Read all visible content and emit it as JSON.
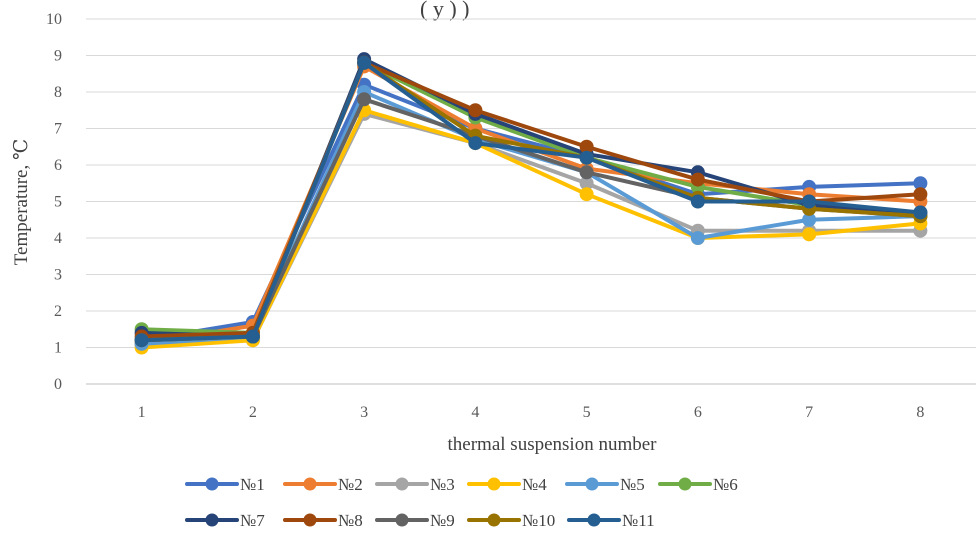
{
  "chart_data": {
    "type": "line",
    "title_partial": "(    y    )   )",
    "xlabel": "thermal suspension number",
    "ylabel": "Temperature, ℃",
    "categories": [
      "1",
      "2",
      "3",
      "4",
      "5",
      "6",
      "7",
      "8"
    ],
    "ylim": [
      0,
      10
    ],
    "yticks": [
      "0",
      "1",
      "2",
      "3",
      "4",
      "5",
      "6",
      "7",
      "8",
      "9",
      "10"
    ],
    "grid": true,
    "legend_position": "bottom",
    "series": [
      {
        "name": "№1",
        "color": "#4472C4",
        "values": [
          1.2,
          1.7,
          8.2,
          7.0,
          6.2,
          5.2,
          5.4,
          5.5
        ]
      },
      {
        "name": "№2",
        "color": "#ED7D31",
        "values": [
          1.1,
          1.6,
          8.7,
          7.0,
          5.9,
          5.5,
          5.2,
          5.0
        ]
      },
      {
        "name": "№3",
        "color": "#A5A5A5",
        "values": [
          1.1,
          1.2,
          7.4,
          6.6,
          5.5,
          4.2,
          4.2,
          4.2
        ]
      },
      {
        "name": "№4",
        "color": "#FFC000",
        "values": [
          1.0,
          1.2,
          7.5,
          6.6,
          5.2,
          4.0,
          4.1,
          4.4
        ]
      },
      {
        "name": "№5",
        "color": "#5B9BD5",
        "values": [
          1.1,
          1.3,
          8.0,
          6.7,
          5.8,
          4.0,
          4.5,
          4.6
        ]
      },
      {
        "name": "№6",
        "color": "#70AD47",
        "values": [
          1.5,
          1.4,
          8.8,
          7.3,
          6.2,
          5.4,
          4.9,
          4.6
        ]
      },
      {
        "name": "№7",
        "color": "#264478",
        "values": [
          1.4,
          1.3,
          8.9,
          7.4,
          6.3,
          5.8,
          4.9,
          4.7
        ]
      },
      {
        "name": "№8",
        "color": "#9E480E",
        "values": [
          1.3,
          1.4,
          8.8,
          7.5,
          6.5,
          5.6,
          5.0,
          5.2
        ]
      },
      {
        "name": "№9",
        "color": "#636363",
        "values": [
          1.2,
          1.3,
          7.8,
          6.8,
          5.8,
          5.1,
          4.8,
          4.6
        ]
      },
      {
        "name": "№10",
        "color": "#997300",
        "values": [
          1.2,
          1.3,
          8.8,
          6.8,
          6.2,
          5.1,
          4.8,
          4.6
        ]
      },
      {
        "name": "№11",
        "color": "#255E91",
        "values": [
          1.2,
          1.3,
          8.8,
          6.6,
          6.2,
          5.0,
          5.0,
          4.7
        ]
      }
    ]
  }
}
